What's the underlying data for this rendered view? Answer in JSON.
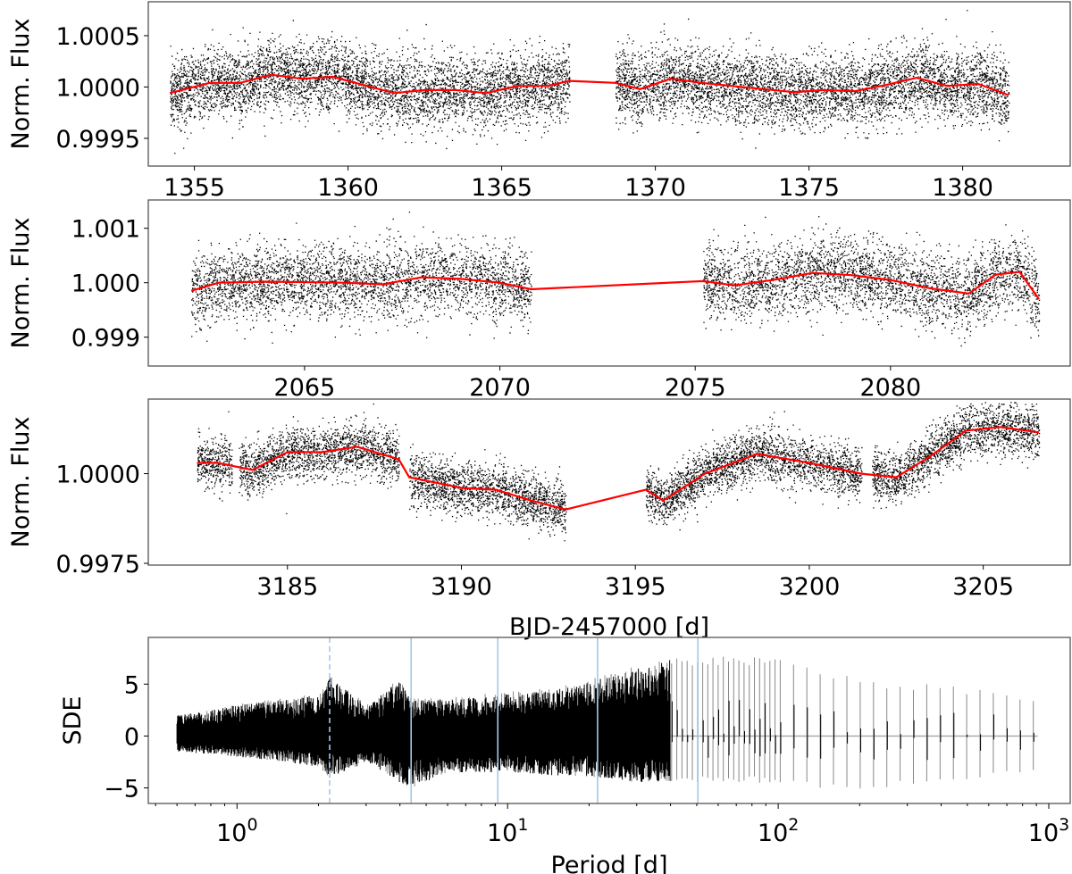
{
  "chart_data": [
    {
      "type": "scatter",
      "panel": 1,
      "ylabel": "Norm. Flux",
      "xlabel": "",
      "xlim": [
        1353.5,
        1383.5
      ],
      "ylim": [
        0.99923,
        1.00083
      ],
      "xticks": [
        "1355",
        "1360",
        "1365",
        "1370",
        "1375",
        "1380"
      ],
      "yticks": [
        "1.0005",
        "1.0000",
        "0.9995"
      ],
      "segments": [
        [
          1354.2,
          1367.2
        ],
        [
          1368.7,
          1381.5
        ]
      ],
      "scatter_std": 0.00017,
      "trend": {
        "color": "#ff0000",
        "x": [
          1354.2,
          1355.5,
          1356.5,
          1357.5,
          1358.5,
          1359.5,
          1360.5,
          1361.5,
          1362.5,
          1363.5,
          1364.5,
          1365.5,
          1366.5,
          1367.2,
          1368.7,
          1369.5,
          1370.5,
          1371.5,
          1372.5,
          1373.5,
          1374.5,
          1375.5,
          1376.5,
          1377.5,
          1378.5,
          1379.5,
          1380.5,
          1381.5
        ],
        "y": [
          0.99994,
          1.00004,
          1.00004,
          1.00012,
          1.00008,
          1.0001,
          1.00002,
          0.99994,
          0.99997,
          0.99997,
          0.99994,
          1.00001,
          1.00001,
          1.00006,
          1.00004,
          0.99998,
          1.00008,
          1.00004,
          1.00001,
          0.99998,
          0.99995,
          0.99997,
          0.99996,
          1.00002,
          1.00009,
          1.00001,
          1.00003,
          0.99992
        ]
      }
    },
    {
      "type": "scatter",
      "panel": 2,
      "ylabel": "Norm. Flux",
      "xlabel": "",
      "xlim": [
        2061.0,
        2084.6
      ],
      "ylim": [
        0.99847,
        1.00152
      ],
      "xticks": [
        "2065",
        "2070",
        "2075",
        "2080"
      ],
      "yticks": [
        "1.001",
        "1.000",
        "0.999"
      ],
      "segments": [
        [
          2062.1,
          2070.8
        ],
        [
          2075.2,
          2083.8
        ]
      ],
      "scatter_std": 0.00033,
      "trend": {
        "color": "#ff0000",
        "x": [
          2062.1,
          2062.8,
          2064,
          2066,
          2067,
          2068,
          2069,
          2070,
          2070.8,
          2075.2,
          2076,
          2077,
          2078,
          2079,
          2080,
          2081,
          2082,
          2082.7,
          2083.3,
          2083.8
        ],
        "y": [
          0.99985,
          1.0,
          1.00002,
          1.0,
          0.99997,
          1.0001,
          1.00007,
          1.0,
          0.99988,
          1.00003,
          0.99995,
          1.00005,
          1.00018,
          1.00014,
          1.00005,
          0.9999,
          0.9998,
          1.00015,
          1.0002,
          0.9997
        ]
      }
    },
    {
      "type": "scatter",
      "panel": 3,
      "ylabel": "Norm. Flux",
      "xlabel": "BJD-2457000 [d]",
      "xlim": [
        3181.0,
        3207.5
      ],
      "ylim": [
        0.99745,
        1.00208
      ],
      "xticks": [
        "3185",
        "3190",
        "3195",
        "3200",
        "3205"
      ],
      "yticks": [
        "1.0000",
        "0.9975"
      ],
      "segments": [
        [
          3182.4,
          3183.4
        ],
        [
          3183.6,
          3188.2
        ],
        [
          3188.5,
          3193.0
        ],
        [
          3195.3,
          3201.5
        ],
        [
          3201.8,
          3206.6
        ]
      ],
      "scatter_std": 0.00035,
      "trend": {
        "color": "#ff0000",
        "x": [
          3182.4,
          3183.0,
          3184.0,
          3185.0,
          3186.0,
          3187.0,
          3188.2,
          3188.5,
          3190.0,
          3191.0,
          3192.0,
          3193.0,
          3195.3,
          3195.8,
          3197.0,
          3198.5,
          3200.0,
          3201.5,
          3202.5,
          3203.5,
          3204.5,
          3205.5,
          3206.6
        ],
        "y": [
          1.0003,
          1.0003,
          1.0001,
          1.0006,
          1.0006,
          1.00075,
          1.0004,
          0.9999,
          0.9996,
          0.99955,
          0.99925,
          0.999,
          0.99955,
          0.99925,
          1.0,
          1.00055,
          1.0003,
          1.0,
          0.9999,
          1.0005,
          1.0012,
          1.0013,
          1.00115
        ]
      }
    },
    {
      "type": "line",
      "panel": 4,
      "title": "",
      "xlabel": "Period [d]",
      "ylabel": "SDE",
      "xscale": "log",
      "xlim": [
        0.47,
        1200
      ],
      "ylim": [
        -6.5,
        9.5
      ],
      "xticks": [
        "10^0",
        "10^1",
        "10^2",
        "10^3"
      ],
      "yticks": [
        "5",
        "0",
        "−5"
      ],
      "period_range": [
        0.6,
        910
      ],
      "envelope": {
        "x": [
          0.6,
          1.0,
          1.5,
          2.0,
          2.2,
          3.0,
          4.0,
          4.4,
          6.0,
          9.0,
          15.0,
          22.0,
          30.0,
          40.0,
          50.0,
          80.0,
          120.0,
          200.0,
          400.0,
          900.0
        ],
        "upper": [
          2.0,
          3.0,
          3.5,
          4.0,
          5.5,
          3.0,
          5.5,
          3.5,
          3.5,
          4.0,
          4.5,
          5.5,
          6.5,
          7.5,
          7.5,
          8.0,
          7.0,
          5.5,
          5.0,
          3.5
        ],
        "lower": [
          -1.5,
          -2.0,
          -2.5,
          -3.0,
          -4.0,
          -2.5,
          -4.5,
          -5.0,
          -3.5,
          -3.5,
          -3.8,
          -4.0,
          -4.5,
          -4.5,
          -4.5,
          -4.5,
          -5.0,
          -5.5,
          -4.5,
          -3.5
        ]
      },
      "vlines": [
        {
          "x": 2.2,
          "style": "dashed",
          "color": "#a6c8e6"
        },
        {
          "x": 4.4,
          "style": "solid",
          "color": "#a6c8e6"
        },
        {
          "x": 9.2,
          "style": "solid",
          "color": "#a6c8e6"
        },
        {
          "x": 21.5,
          "style": "solid",
          "color": "#a6c8e6"
        },
        {
          "x": 50.5,
          "style": "solid",
          "color": "#a6c8e6"
        }
      ]
    }
  ],
  "colors": {
    "points": "#000000",
    "trend": "#ff0000",
    "vline": "#a6c8e6",
    "frame": "#555555",
    "baseline": "#aaaaaa"
  }
}
